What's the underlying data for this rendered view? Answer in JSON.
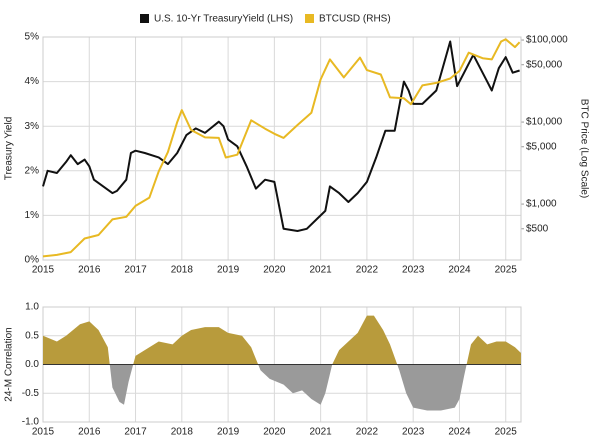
{
  "chart_data": [
    {
      "type": "line",
      "legend": "top",
      "grid": true,
      "ylabel": "Treasury Yield",
      "y2label": "BTC Price (Log Scale)",
      "xlim": [
        2015,
        2025.33
      ],
      "xticks": [
        2015,
        2016,
        2017,
        2018,
        2019,
        2020,
        2021,
        2022,
        2023,
        2024,
        2025
      ],
      "ylim": [
        0,
        5
      ],
      "yticks": [
        {
          "value": 0,
          "label": "0%"
        },
        {
          "value": 1,
          "label": "1%"
        },
        {
          "value": 2,
          "label": "2%"
        },
        {
          "value": 3,
          "label": "3%"
        },
        {
          "value": 4,
          "label": "4%"
        },
        {
          "value": 5,
          "label": "5%"
        }
      ],
      "y2log": true,
      "y2lim": [
        208,
        108900
      ],
      "y2ticks": [
        {
          "value": 500,
          "label": "$500"
        },
        {
          "value": 1000,
          "label": "$1,000"
        },
        {
          "value": 5000,
          "label": "$5,000"
        },
        {
          "value": 10000,
          "label": "$10,000"
        },
        {
          "value": 50000,
          "label": "$50,000"
        },
        {
          "value": 100000,
          "label": "$100,000"
        }
      ],
      "series": [
        {
          "name": "U.S. 10-Yr TreasuryYield (LHS)",
          "color": "#111111",
          "x": [
            2015.0,
            2015.1,
            2015.3,
            2015.5,
            2015.6,
            2015.75,
            2015.9,
            2016.0,
            2016.1,
            2016.5,
            2016.6,
            2016.8,
            2016.9,
            2017.0,
            2017.2,
            2017.5,
            2017.7,
            2017.9,
            2018.1,
            2018.3,
            2018.5,
            2018.8,
            2018.9,
            2019.0,
            2019.2,
            2019.4,
            2019.6,
            2019.8,
            2020.0,
            2020.2,
            2020.5,
            2020.7,
            2020.9,
            2021.1,
            2021.2,
            2021.4,
            2021.6,
            2021.8,
            2022.0,
            2022.2,
            2022.4,
            2022.6,
            2022.8,
            2022.9,
            2023.0,
            2023.2,
            2023.5,
            2023.8,
            2023.95,
            2024.1,
            2024.3,
            2024.6,
            2024.7,
            2024.85,
            2025.0,
            2025.15,
            2025.3
          ],
          "values": [
            1.65,
            2.0,
            1.95,
            2.2,
            2.35,
            2.15,
            2.25,
            2.1,
            1.8,
            1.5,
            1.55,
            1.8,
            2.4,
            2.45,
            2.4,
            2.3,
            2.15,
            2.4,
            2.8,
            2.95,
            2.85,
            3.1,
            3.0,
            2.7,
            2.55,
            2.1,
            1.6,
            1.8,
            1.75,
            0.7,
            0.65,
            0.7,
            0.9,
            1.1,
            1.65,
            1.5,
            1.3,
            1.5,
            1.75,
            2.3,
            2.9,
            2.9,
            4.0,
            3.8,
            3.5,
            3.5,
            3.8,
            4.9,
            3.9,
            4.2,
            4.6,
            4.0,
            3.8,
            4.3,
            4.55,
            4.2,
            4.25
          ]
        },
        {
          "name": "BTCUSD (RHS)",
          "color": "#e8b923",
          "axis": "y2",
          "x": [
            2015.0,
            2015.3,
            2015.6,
            2015.9,
            2016.2,
            2016.5,
            2016.8,
            2017.0,
            2017.3,
            2017.5,
            2017.7,
            2017.9,
            2018.0,
            2018.2,
            2018.5,
            2018.8,
            2018.95,
            2019.2,
            2019.5,
            2019.8,
            2020.0,
            2020.2,
            2020.5,
            2020.8,
            2021.0,
            2021.2,
            2021.5,
            2021.85,
            2022.0,
            2022.3,
            2022.5,
            2022.8,
            2022.95,
            2023.2,
            2023.5,
            2023.8,
            2024.0,
            2024.2,
            2024.5,
            2024.7,
            2024.9,
            2025.0,
            2025.2,
            2025.3
          ],
          "values": [
            230,
            240,
            260,
            380,
            420,
            650,
            700,
            950,
            1200,
            2500,
            4300,
            10000,
            14000,
            8000,
            6500,
            6400,
            3700,
            4000,
            10500,
            8300,
            7200,
            6400,
            9200,
            13000,
            33000,
            58000,
            35000,
            61000,
            43000,
            38000,
            20000,
            19500,
            16500,
            28000,
            30000,
            34000,
            42000,
            70000,
            60000,
            58000,
            96000,
            102000,
            82000,
            94000
          ]
        }
      ]
    },
    {
      "type": "area",
      "grid": true,
      "ylabel": "24-M Correlation",
      "xlim": [
        2015,
        2025.33
      ],
      "xticks": [
        2015,
        2016,
        2017,
        2018,
        2019,
        2020,
        2021,
        2022,
        2023,
        2024,
        2025
      ],
      "ylim": [
        -1,
        1
      ],
      "yticks": [
        {
          "value": -1,
          "label": "-1.0"
        },
        -0.5,
        {
          "value": 0,
          "label": "0.0"
        },
        0.5,
        {
          "value": 1,
          "label": "1.0"
        }
      ],
      "color": "#b89b3c",
      "negative_color": "#9a9a9a",
      "x": [
        2015.0,
        2015.3,
        2015.5,
        2015.8,
        2016.0,
        2016.2,
        2016.4,
        2016.5,
        2016.65,
        2016.75,
        2016.85,
        2017.0,
        2017.3,
        2017.5,
        2017.8,
        2018.0,
        2018.2,
        2018.5,
        2018.8,
        2019.0,
        2019.3,
        2019.5,
        2019.7,
        2019.9,
        2020.2,
        2020.4,
        2020.6,
        2020.8,
        2021.0,
        2021.1,
        2021.25,
        2021.4,
        2021.6,
        2021.8,
        2022.0,
        2022.15,
        2022.35,
        2022.5,
        2022.7,
        2022.85,
        2023.0,
        2023.3,
        2023.6,
        2023.9,
        2024.0,
        2024.1,
        2024.25,
        2024.4,
        2024.6,
        2024.8,
        2025.0,
        2025.2,
        2025.33
      ],
      "values": [
        0.5,
        0.4,
        0.5,
        0.7,
        0.75,
        0.6,
        0.3,
        -0.4,
        -0.65,
        -0.7,
        -0.3,
        0.15,
        0.3,
        0.4,
        0.35,
        0.5,
        0.6,
        0.65,
        0.65,
        0.55,
        0.5,
        0.3,
        -0.1,
        -0.25,
        -0.35,
        -0.5,
        -0.45,
        -0.6,
        -0.7,
        -0.5,
        0.0,
        0.25,
        0.4,
        0.55,
        0.85,
        0.85,
        0.6,
        0.35,
        -0.1,
        -0.5,
        -0.75,
        -0.8,
        -0.8,
        -0.75,
        -0.6,
        -0.2,
        0.35,
        0.5,
        0.35,
        0.4,
        0.4,
        0.3,
        0.2
      ]
    }
  ]
}
